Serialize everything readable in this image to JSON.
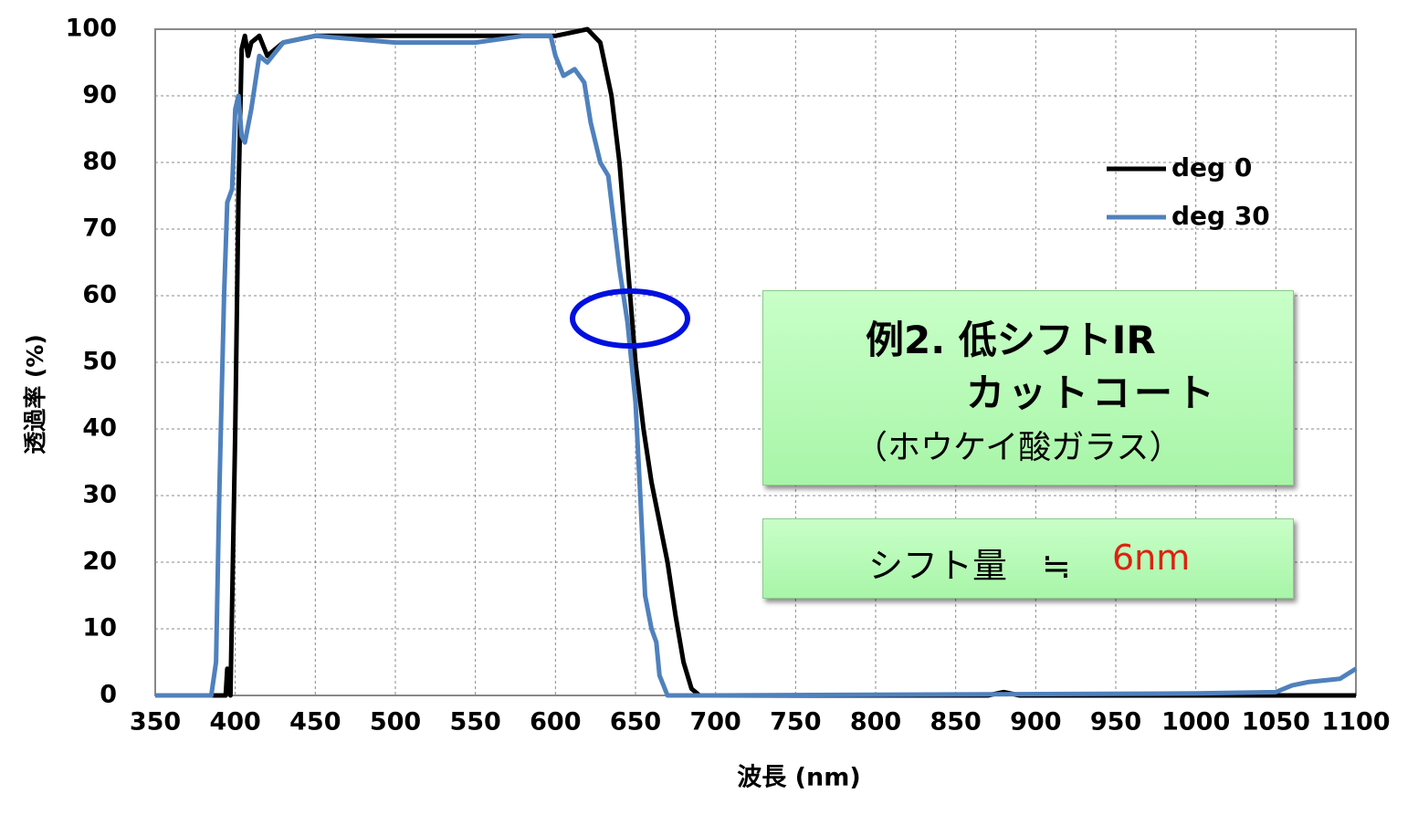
{
  "chart_data": {
    "type": "line",
    "x_label": "波長 (nm)",
    "y_label": "透過率 (%)",
    "xlim": [
      350,
      1100
    ],
    "xticks": [
      350,
      400,
      450,
      500,
      550,
      600,
      650,
      700,
      750,
      800,
      850,
      900,
      950,
      1000,
      1050,
      1100
    ],
    "ylim": [
      0,
      100
    ],
    "yticks": [
      0,
      10,
      20,
      30,
      40,
      50,
      60,
      70,
      80,
      90,
      100
    ],
    "grid": true,
    "legend": "upper right",
    "series": [
      {
        "name": "deg 0",
        "color": "#000000",
        "x": [
          350,
          390,
          394,
          395,
          397,
          400,
          402,
          404,
          406,
          408,
          410,
          415,
          420,
          430,
          450,
          470,
          500,
          550,
          600,
          620,
          628,
          635,
          640,
          645,
          650,
          655,
          660,
          670,
          675,
          680,
          685,
          690,
          700,
          870,
          880,
          890,
          1100
        ],
        "values": [
          0,
          0,
          0,
          4,
          0,
          40,
          75,
          97,
          99,
          96,
          98,
          99,
          96,
          98,
          99,
          99,
          99,
          99,
          99,
          100,
          98,
          90,
          80,
          65,
          50,
          40,
          32,
          20,
          12,
          5,
          1,
          0,
          0,
          0,
          0.5,
          0,
          0
        ]
      },
      {
        "name": "deg 30",
        "color": "#4f81bd",
        "x": [
          350,
          385,
          388,
          390,
          393,
          395,
          398,
          400,
          402,
          404,
          406,
          410,
          415,
          420,
          430,
          450,
          500,
          550,
          580,
          597,
          600,
          605,
          612,
          618,
          622,
          628,
          633,
          637,
          640,
          645,
          650,
          653,
          656,
          660,
          663,
          665,
          670,
          700,
          1000,
          1050,
          1060,
          1070,
          1090,
          1100
        ],
        "values": [
          0,
          0,
          5,
          30,
          60,
          74,
          76,
          88,
          90,
          84,
          83,
          88,
          96,
          95,
          98,
          99,
          98,
          98,
          99,
          99,
          96,
          93,
          94,
          92,
          86,
          80,
          78,
          70,
          64,
          56,
          44,
          30,
          15,
          10,
          8,
          3,
          0,
          0,
          0.3,
          0.5,
          1.5,
          2,
          2.5,
          4
        ]
      }
    ],
    "annotation_boxes": [
      {
        "lines": [
          "例2. 低シフトIR",
          "カットコート",
          "（ホウケイ酸ガラス）"
        ]
      },
      {
        "lines": [
          "シフト量　≒",
          "6nm"
        ]
      }
    ]
  }
}
